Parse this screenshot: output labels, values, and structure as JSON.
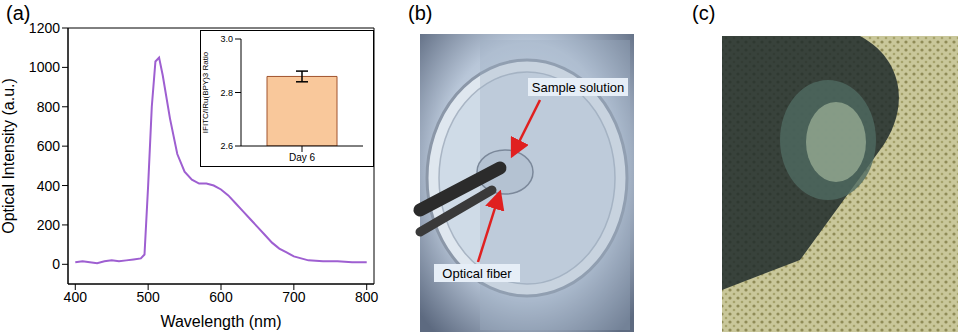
{
  "panel_labels": [
    "(a)",
    "(b)",
    "(c)"
  ],
  "chart_data": [
    {
      "type": "line",
      "x_label": "Wavelength (nm)",
      "y_label": "Optical Intensity (a.u.)",
      "x": [
        400,
        410,
        420,
        430,
        440,
        450,
        460,
        470,
        480,
        490,
        495,
        500,
        505,
        510,
        515,
        520,
        530,
        540,
        550,
        560,
        570,
        580,
        590,
        600,
        610,
        620,
        630,
        640,
        650,
        660,
        670,
        680,
        690,
        700,
        710,
        720,
        740,
        760,
        780,
        800
      ],
      "values": [
        10,
        15,
        10,
        5,
        15,
        20,
        15,
        20,
        25,
        30,
        50,
        400,
        800,
        1030,
        1050,
        960,
        740,
        560,
        470,
        430,
        410,
        410,
        400,
        380,
        350,
        310,
        270,
        230,
        190,
        150,
        110,
        80,
        60,
        40,
        30,
        20,
        15,
        15,
        10,
        10
      ],
      "color": "#9e5fd1",
      "xlim": [
        390,
        810
      ],
      "xticks": [
        400,
        500,
        600,
        700,
        800
      ],
      "ylim": [
        -100,
        1200
      ],
      "yticks": [
        0,
        200,
        400,
        600,
        800,
        1000,
        1200
      ]
    },
    {
      "type": "bar",
      "y_label": "IFITC/IRu(BPY)3 Ratio",
      "categories": [
        "Day 6"
      ],
      "values": [
        2.86
      ],
      "error": [
        0.02
      ],
      "color": "#f9c89b",
      "ylim": [
        2.6,
        3.0
      ],
      "yticks": [
        2.6,
        2.8,
        {
          "value": 3,
          "label": "3.0"
        }
      ]
    }
  ],
  "photo_b": {
    "annotations": [
      "Sample solution",
      "Optical fiber"
    ]
  }
}
